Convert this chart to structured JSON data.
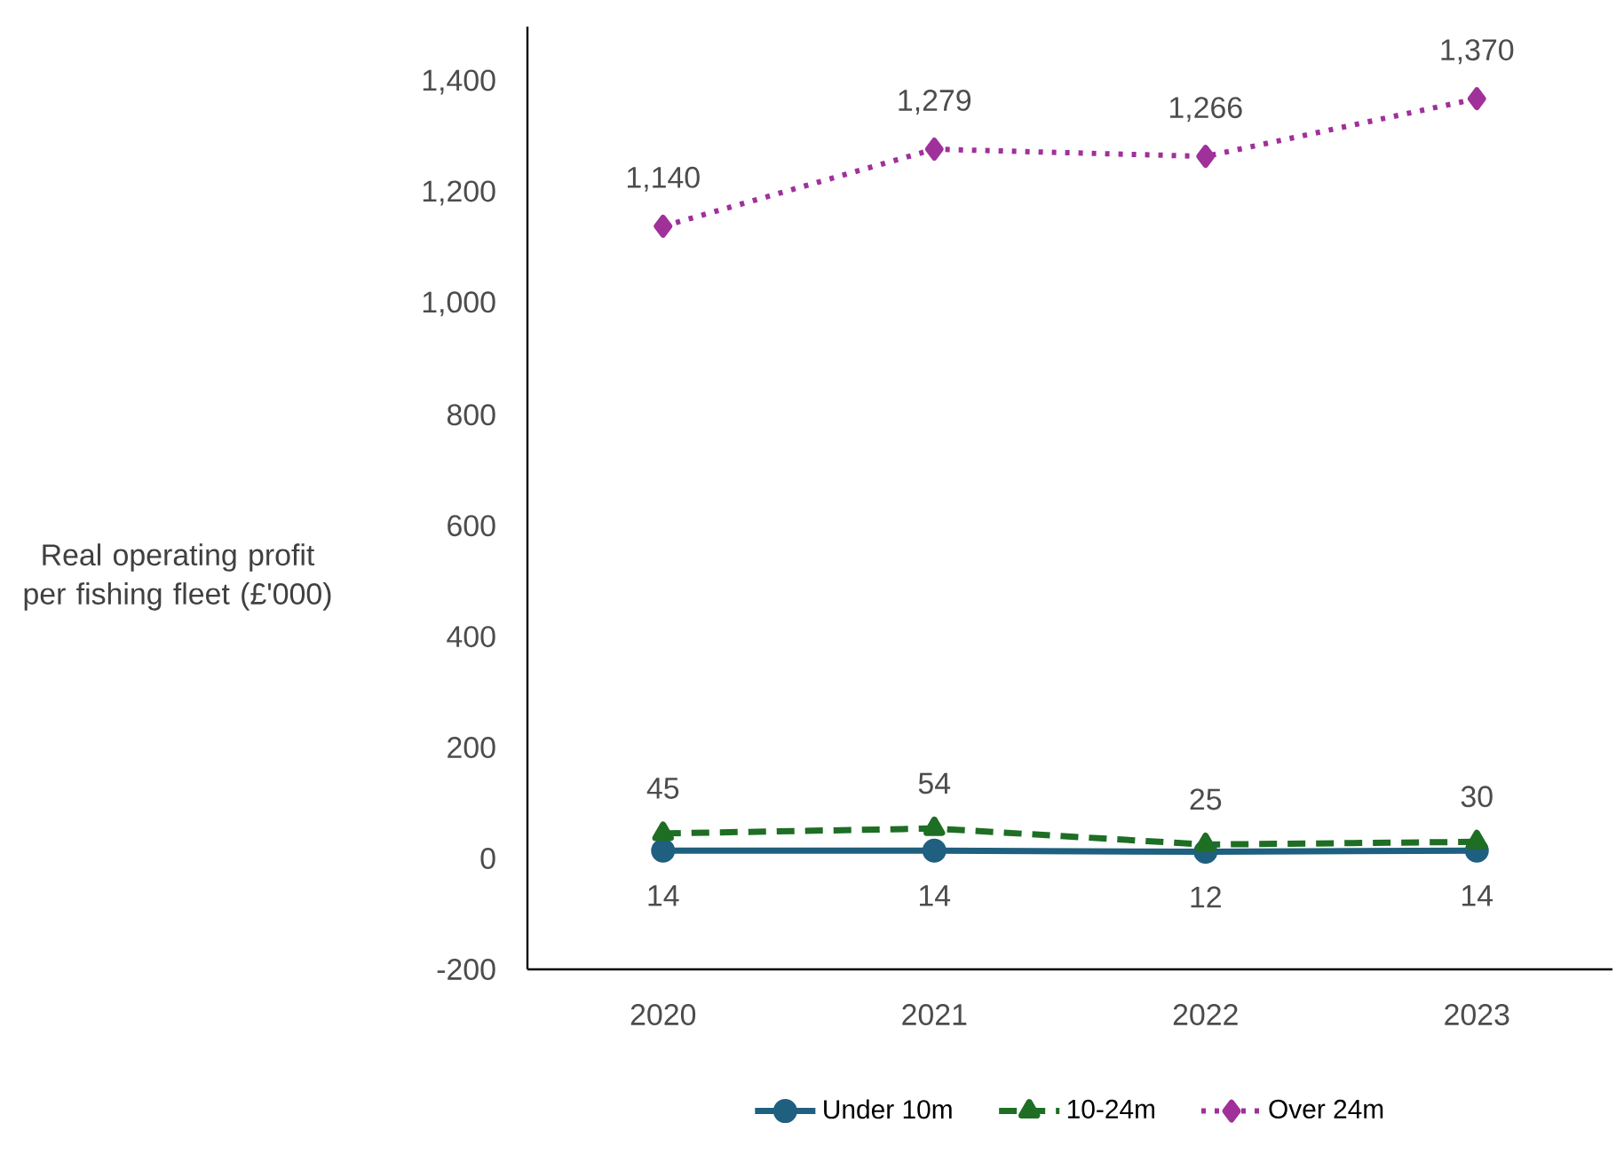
{
  "chart_data": {
    "type": "line",
    "ylabel": "Real operating profit per fishing fleet (£'000)",
    "categories": [
      "2020",
      "2021",
      "2022",
      "2023"
    ],
    "series": [
      {
        "name": "Under 10m",
        "color": "#1f5f7f",
        "values": [
          14,
          14,
          12,
          14
        ],
        "value_labels": [
          "14",
          "14",
          "12",
          "14"
        ],
        "marker": "circle",
        "line_style": "solid"
      },
      {
        "name": "10-24m",
        "color": "#1e6e24",
        "values": [
          45,
          54,
          25,
          30
        ],
        "value_labels": [
          "45",
          "54",
          "25",
          "30"
        ],
        "marker": "triangle",
        "line_style": "dashed"
      },
      {
        "name": "Over 24m",
        "color": "#a0309a",
        "values": [
          1140,
          1279,
          1266,
          1370
        ],
        "value_labels": [
          "1,140",
          "1,279",
          "1,266",
          "1,370"
        ],
        "marker": "diamond",
        "line_style": "dotted"
      }
    ],
    "ylim": [
      -200,
      1500
    ],
    "yticks": [
      -200,
      0,
      200,
      400,
      600,
      800,
      {
        "value": 1000,
        "label": "1,000"
      },
      {
        "value": 1200,
        "label": "1,200"
      },
      {
        "value": 1400,
        "label": "1,400"
      }
    ],
    "grid": false,
    "legend": "bottom"
  }
}
